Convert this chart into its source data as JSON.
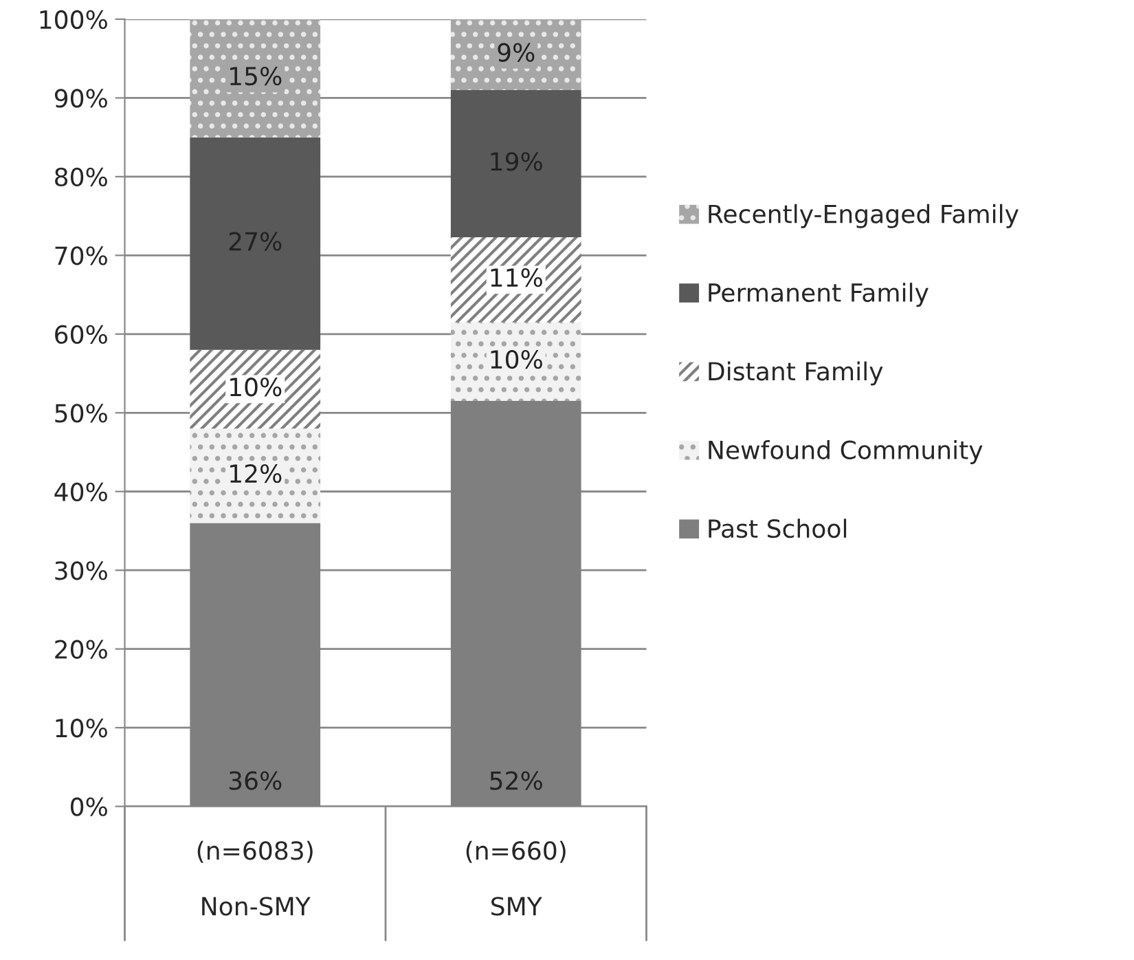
{
  "chart_data": {
    "type": "bar",
    "stacked": true,
    "categories": [
      "(n=6083)\n\nNon-SMY",
      "(n=660)\n\nSMY"
    ],
    "series": [
      {
        "name": "Past School",
        "color": "#7f7f7f",
        "values": [
          36,
          51.5
        ],
        "value_labels": [
          "36%",
          "52%"
        ]
      },
      {
        "name": "Newfound Community",
        "color": "#f2f2f2",
        "values": [
          12,
          10
        ],
        "value_labels": [
          "12%",
          "10%"
        ]
      },
      {
        "name": "Distant Family",
        "color": "#ffffff",
        "values": [
          10,
          10.8
        ],
        "value_labels": [
          "10%",
          "11%"
        ]
      },
      {
        "name": "Permanent Family",
        "color": "#595959",
        "values": [
          27,
          18.7
        ],
        "value_labels": [
          "27%",
          "19%"
        ]
      },
      {
        "name": "Recently-Engaged Family",
        "color": "#a6a6a6",
        "values": [
          15,
          9
        ],
        "value_labels": [
          "15%",
          "9%"
        ]
      }
    ],
    "ylim": [
      0,
      100
    ],
    "yticks": [
      {
        "value": 0,
        "label": "0%"
      },
      {
        "value": 10,
        "label": "10%"
      },
      {
        "value": 20,
        "label": "20%"
      },
      {
        "value": 30,
        "label": "30%"
      },
      {
        "value": 40,
        "label": "40%"
      },
      {
        "value": 50,
        "label": "50%"
      },
      {
        "value": 60,
        "label": "60%"
      },
      {
        "value": 70,
        "label": "70%"
      },
      {
        "value": 80,
        "label": "80%"
      },
      {
        "value": 90,
        "label": "90%"
      },
      {
        "value": 100,
        "label": "100%"
      }
    ],
    "grid": "y",
    "legend": "right"
  }
}
